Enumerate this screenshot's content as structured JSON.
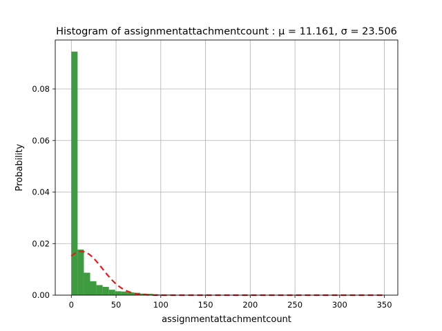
{
  "chart_data": {
    "type": "bar",
    "title": "Histogram of assignmentattachmentcount :  μ = 11.161,  σ = 23.506",
    "xlabel": "assignmentattachmentcount",
    "ylabel": "Probability",
    "xlim": [
      -18,
      365
    ],
    "ylim": [
      0,
      0.099
    ],
    "xticks": [
      0,
      50,
      100,
      150,
      200,
      250,
      300,
      350
    ],
    "yticks": [
      0.0,
      0.02,
      0.04,
      0.06,
      0.08
    ],
    "ytick_labels": [
      "0.00",
      "0.02",
      "0.04",
      "0.06",
      "0.08"
    ],
    "grid": true,
    "bin_width": 7,
    "bins": [
      {
        "x0": 0,
        "value": 0.0945
      },
      {
        "x0": 7,
        "value": 0.0177
      },
      {
        "x0": 14,
        "value": 0.0087
      },
      {
        "x0": 21,
        "value": 0.0054
      },
      {
        "x0": 28,
        "value": 0.0039
      },
      {
        "x0": 35,
        "value": 0.0032
      },
      {
        "x0": 42,
        "value": 0.0021
      },
      {
        "x0": 49,
        "value": 0.0015
      },
      {
        "x0": 56,
        "value": 0.0014
      },
      {
        "x0": 63,
        "value": 0.0011
      },
      {
        "x0": 70,
        "value": 0.0009
      },
      {
        "x0": 77,
        "value": 0.0006
      },
      {
        "x0": 84,
        "value": 0.0005
      },
      {
        "x0": 91,
        "value": 0.0003
      },
      {
        "x0": 98,
        "value": 0.0002
      },
      {
        "x0": 105,
        "value": 0.0002
      },
      {
        "x0": 112,
        "value": 0.0001
      },
      {
        "x0": 119,
        "value": 0.0001
      },
      {
        "x0": 126,
        "value": 0.0001
      }
    ],
    "fit": {
      "type": "normal",
      "mu": 11.161,
      "sigma": 23.506,
      "x_range": [
        0,
        350
      ]
    },
    "colors": {
      "bars": "#3f9b3f",
      "fit_line": "#e41a1c",
      "grid": "#b0b0b0"
    }
  }
}
